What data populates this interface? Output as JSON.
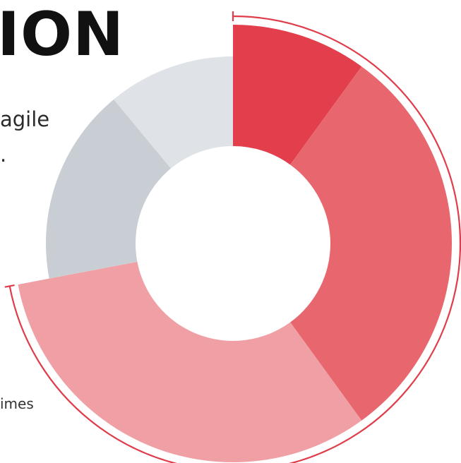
{
  "heading": "ION",
  "text": {
    "line1": "agile",
    "line2": "."
  },
  "note": "imes",
  "colors": {
    "accent": "#e03c4a",
    "ring_bracket": "#e03c4a"
  },
  "chart_data": {
    "type": "pie",
    "variant": "donut",
    "title": "",
    "slices": [
      {
        "value": 10,
        "color": "#e23e4c"
      },
      {
        "value": 30,
        "color": "#e8666e"
      },
      {
        "value": 32,
        "color": "#f0a0a4"
      },
      {
        "value": 17,
        "color": "#c9ced4"
      },
      {
        "value": 11,
        "color": "#dfe2e6"
      }
    ],
    "highlight_bracket": {
      "from_slice": 0,
      "to_slice": 2
    }
  }
}
